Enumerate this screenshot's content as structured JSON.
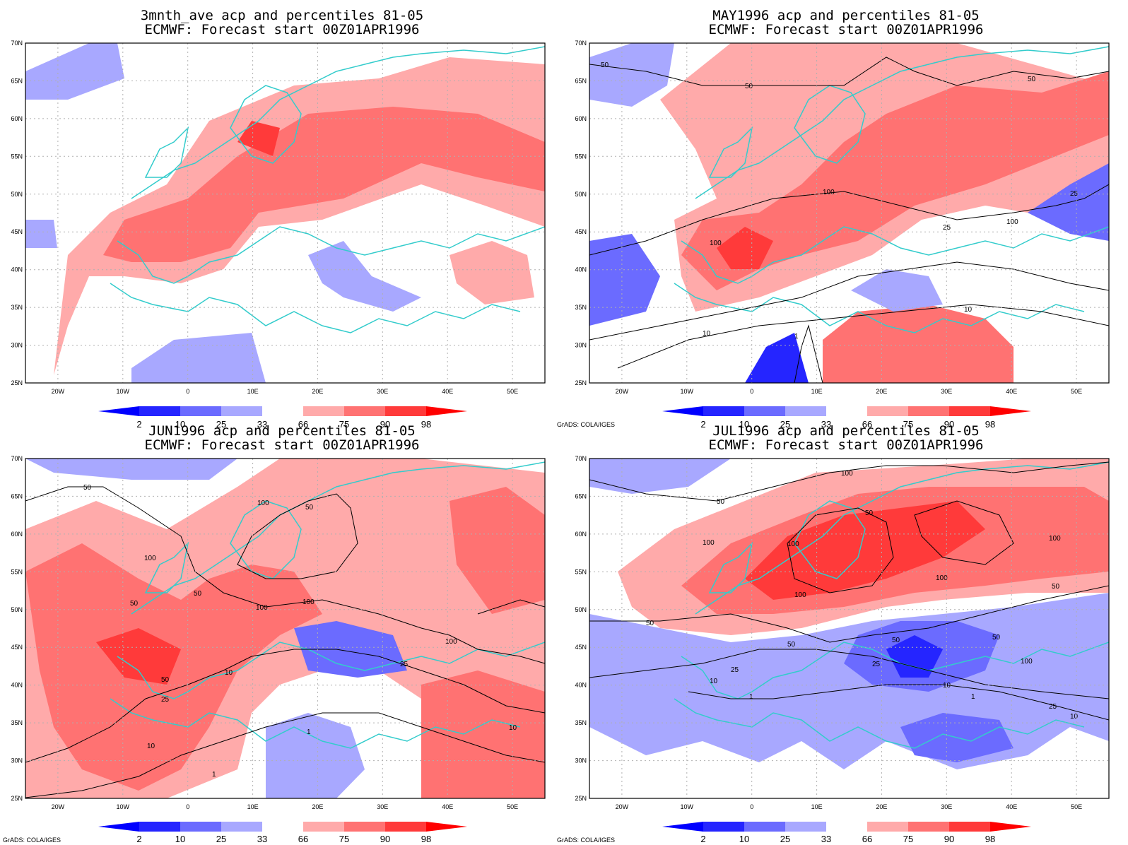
{
  "panels": [
    {
      "title_line1": "3mnth_ave acp and percentiles 81-05",
      "title_line2": "ECMWF: Forecast start 00Z01APR1996",
      "credit": "",
      "contours": false
    },
    {
      "title_line1": "MAY1996 acp and percentiles 81-05",
      "title_line2": "ECMWF: Forecast start 00Z01APR1996",
      "credit": "GrADS: COLA/IGES",
      "contours": true
    },
    {
      "title_line1": "JUN1996 acp and percentiles 81-05",
      "title_line2": "ECMWF: Forecast start 00Z01APR1996",
      "credit": "GrADS: COLA/IGES",
      "contours": true
    },
    {
      "title_line1": "JUL1996 acp and percentiles 81-05",
      "title_line2": "ECMWF: Forecast start 00Z01APR1996",
      "credit": "GrADS: COLA/IGES",
      "contours": true
    }
  ],
  "lat_labels": [
    "70N",
    "65N",
    "60N",
    "55N",
    "50N",
    "45N",
    "40N",
    "35N",
    "30N",
    "25N"
  ],
  "lon_labels": [
    "20W",
    "10W",
    "0",
    "10E",
    "20E",
    "30E",
    "40E",
    "50E"
  ],
  "colorbar": {
    "labels": [
      "2",
      "10",
      "25",
      "33",
      "66",
      "75",
      "90",
      "98"
    ],
    "colors": [
      "#0000ff",
      "#2525ff",
      "#6b6bff",
      "#a8a8ff",
      "#ffffff",
      "#ffaaaa",
      "#ff7272",
      "#ff3a3a",
      "#ff0000"
    ]
  },
  "contour_labels": [
    "1",
    "10",
    "25",
    "50",
    "100"
  ],
  "colors": {
    "coast": "#33cccc",
    "contour": "#000000",
    "grid": "#b0b0b0"
  }
}
